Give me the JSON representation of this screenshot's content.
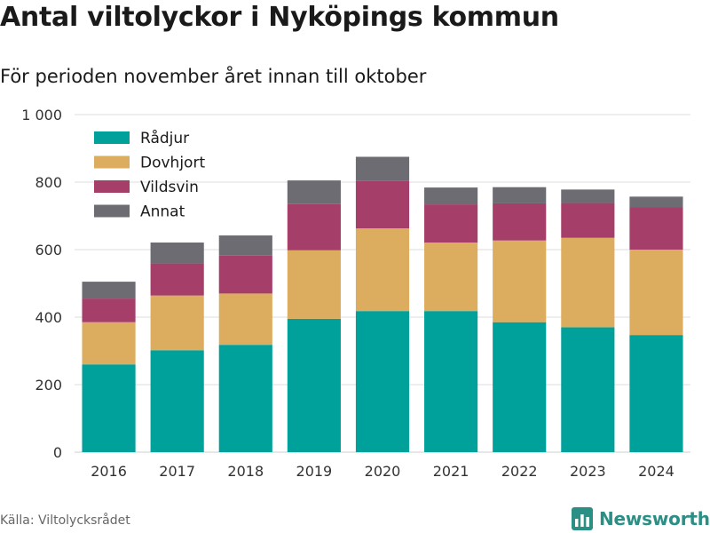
{
  "header": {
    "title": "Antal viltolyckor i Nyköpings kommun",
    "subtitle": "För perioden november året innan till oktober"
  },
  "footer": {
    "source": "Källa: Viltolycksrådet",
    "brand": "Newsworthy",
    "brand_icon": "bar-chart-logo-icon"
  },
  "colors": {
    "Rådjur": "#00a19a",
    "Dovhjort": "#dcad5e",
    "Vildsvin": "#a63e6a",
    "Annat": "#6d6c72",
    "grid": "#dddddd",
    "brand": "#2b8f85"
  },
  "chart_data": {
    "type": "bar",
    "stacked": true,
    "categories": [
      "2016",
      "2017",
      "2018",
      "2019",
      "2020",
      "2021",
      "2022",
      "2023",
      "2024"
    ],
    "series": [
      {
        "name": "Rådjur",
        "values": [
          260,
          302,
          318,
          395,
          418,
          418,
          385,
          370,
          347
        ]
      },
      {
        "name": "Dovhjort",
        "values": [
          125,
          162,
          152,
          203,
          245,
          203,
          242,
          265,
          253
        ]
      },
      {
        "name": "Vildsvin",
        "values": [
          70,
          95,
          112,
          137,
          140,
          113,
          110,
          103,
          125
        ]
      },
      {
        "name": "Annat",
        "values": [
          50,
          62,
          60,
          70,
          72,
          50,
          48,
          40,
          32
        ]
      }
    ],
    "ylim": [
      0,
      1000
    ],
    "yticks": [
      0,
      200,
      400,
      600,
      800,
      1000
    ],
    "ytick_labels": [
      "0",
      "200",
      "400",
      "600",
      "800",
      "1 000"
    ],
    "grid": true,
    "legend": "top-left",
    "xlabel": "",
    "ylabel": ""
  }
}
